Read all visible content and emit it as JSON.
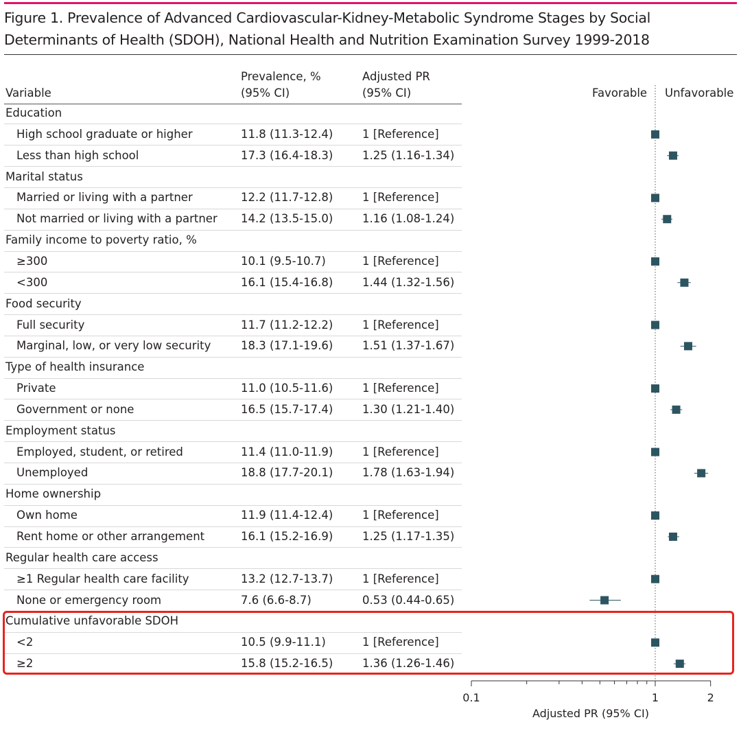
{
  "title": "Figure 1. Prevalence of Advanced Cardiovascular-Kidney-Metabolic Syndrome Stages by Social Determinants of Health (SDOH), National Health and Nutrition Examination Survey 1999-2018",
  "headers": {
    "variable": "Variable",
    "prevalence_line1": "Prevalence, %",
    "prevalence_line2": "(95% CI)",
    "pr_line1": "Adjusted PR",
    "pr_line2": "(95% CI)",
    "favorable": "Favorable",
    "unfavorable": "Unfavorable"
  },
  "chart_data": {
    "type": "forest",
    "xlabel": "Adjusted PR (95% CI)",
    "x_scale": "log",
    "xlim": [
      0.1,
      2
    ],
    "x_ticks": [
      "0.1",
      "1",
      "2"
    ],
    "reference_line": 1,
    "rows": [
      {
        "kind": "group",
        "label": "Education"
      },
      {
        "kind": "item",
        "label": "High school graduate or higher",
        "prevalence": "11.8 (11.3-12.4)",
        "pr_text": "1 [Reference]",
        "pr": 1,
        "lo": 1,
        "hi": 1
      },
      {
        "kind": "item",
        "label": "Less than high school",
        "prevalence": "17.3 (16.4-18.3)",
        "pr_text": "1.25 (1.16-1.34)",
        "pr": 1.25,
        "lo": 1.16,
        "hi": 1.34
      },
      {
        "kind": "group",
        "label": "Marital status"
      },
      {
        "kind": "item",
        "label": "Married or living with a partner",
        "prevalence": "12.2 (11.7-12.8)",
        "pr_text": "1 [Reference]",
        "pr": 1,
        "lo": 1,
        "hi": 1
      },
      {
        "kind": "item",
        "label": "Not married or living with a partner",
        "prevalence": "14.2 (13.5-15.0)",
        "pr_text": "1.16 (1.08-1.24)",
        "pr": 1.16,
        "lo": 1.08,
        "hi": 1.24
      },
      {
        "kind": "group",
        "label": "Family income to poverty ratio, %"
      },
      {
        "kind": "item",
        "label": "≥300",
        "prevalence": "10.1 (9.5-10.7)",
        "pr_text": "1 [Reference]",
        "pr": 1,
        "lo": 1,
        "hi": 1
      },
      {
        "kind": "item",
        "label": "<300",
        "prevalence": "16.1 (15.4-16.8)",
        "pr_text": "1.44 (1.32-1.56)",
        "pr": 1.44,
        "lo": 1.32,
        "hi": 1.56
      },
      {
        "kind": "group",
        "label": "Food security"
      },
      {
        "kind": "item",
        "label": "Full security",
        "prevalence": "11.7 (11.2-12.2)",
        "pr_text": "1 [Reference]",
        "pr": 1,
        "lo": 1,
        "hi": 1
      },
      {
        "kind": "item",
        "label": "Marginal, low, or very low security",
        "prevalence": "18.3 (17.1-19.6)",
        "pr_text": "1.51 (1.37-1.67)",
        "pr": 1.51,
        "lo": 1.37,
        "hi": 1.67
      },
      {
        "kind": "group",
        "label": "Type of health insurance"
      },
      {
        "kind": "item",
        "label": "Private",
        "prevalence": "11.0 (10.5-11.6)",
        "pr_text": "1 [Reference]",
        "pr": 1,
        "lo": 1,
        "hi": 1
      },
      {
        "kind": "item",
        "label": "Government or none",
        "prevalence": "16.5 (15.7-17.4)",
        "pr_text": "1.30 (1.21-1.40)",
        "pr": 1.3,
        "lo": 1.21,
        "hi": 1.4
      },
      {
        "kind": "group",
        "label": "Employment status"
      },
      {
        "kind": "item",
        "label": "Employed, student, or retired",
        "prevalence": "11.4 (11.0-11.9)",
        "pr_text": "1 [Reference]",
        "pr": 1,
        "lo": 1,
        "hi": 1
      },
      {
        "kind": "item",
        "label": "Unemployed",
        "prevalence": "18.8 (17.7-20.1)",
        "pr_text": "1.78 (1.63-1.94)",
        "pr": 1.78,
        "lo": 1.63,
        "hi": 1.94
      },
      {
        "kind": "group",
        "label": "Home ownership"
      },
      {
        "kind": "item",
        "label": "Own home",
        "prevalence": "11.9 (11.4-12.4)",
        "pr_text": "1 [Reference]",
        "pr": 1,
        "lo": 1,
        "hi": 1
      },
      {
        "kind": "item",
        "label": "Rent home or other arrangement",
        "prevalence": "16.1 (15.2-16.9)",
        "pr_text": "1.25 (1.17-1.35)",
        "pr": 1.25,
        "lo": 1.17,
        "hi": 1.35
      },
      {
        "kind": "group",
        "label": "Regular health care access"
      },
      {
        "kind": "item",
        "label": "≥1 Regular health care facility",
        "prevalence": "13.2 (12.7-13.7)",
        "pr_text": "1 [Reference]",
        "pr": 1,
        "lo": 1,
        "hi": 1
      },
      {
        "kind": "item",
        "label": "None or emergency room",
        "prevalence": "7.6 (6.6-8.7)",
        "pr_text": "0.53 (0.44-0.65)",
        "pr": 0.53,
        "lo": 0.44,
        "hi": 0.65
      },
      {
        "kind": "group",
        "label": "Cumulative unfavorable SDOH"
      },
      {
        "kind": "item",
        "label": "<2",
        "prevalence": "10.5 (9.9-11.1)",
        "pr_text": "1 [Reference]",
        "pr": 1,
        "lo": 1,
        "hi": 1
      },
      {
        "kind": "item",
        "label": "≥2",
        "prevalence": "15.8 (15.2-16.5)",
        "pr_text": "1.36 (1.26-1.46)",
        "pr": 1.36,
        "lo": 1.26,
        "hi": 1.46
      }
    ]
  },
  "colors": {
    "marker": "#2d5561",
    "accent_rule": "#e2126b",
    "highlight": "#e8231c"
  },
  "highlight_group": "Cumulative unfavorable SDOH"
}
